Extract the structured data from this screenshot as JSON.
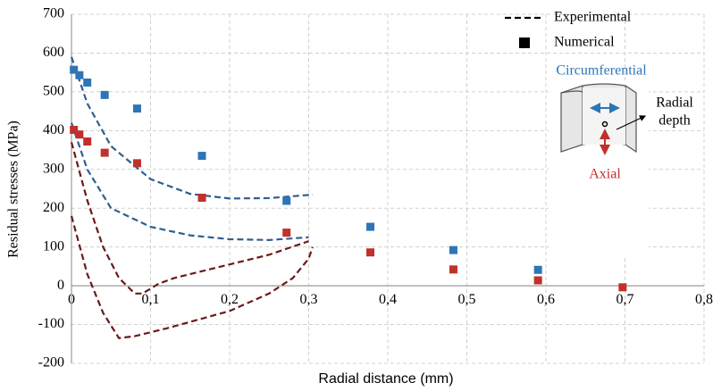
{
  "chart_data": {
    "type": "scatter",
    "xlabel": "Radial distance (mm)",
    "ylabel": "Residual stresses (MPa)",
    "xlim": [
      0,
      0.8
    ],
    "ylim": [
      -200,
      700
    ],
    "xticks": [
      0,
      {
        "value": 0.1,
        "label": "0,1"
      },
      {
        "value": 0.2,
        "label": "0,2"
      },
      {
        "value": 0.3,
        "label": "0,3"
      },
      {
        "value": 0.4,
        "label": "0,4"
      },
      {
        "value": 0.5,
        "label": "0,5"
      },
      {
        "value": 0.6,
        "label": "0,6"
      },
      {
        "value": 0.7,
        "label": "0,7"
      },
      {
        "value": 0.8,
        "label": "0,8"
      }
    ],
    "yticks": [
      -200,
      -100,
      0,
      100,
      200,
      300,
      400,
      500,
      600,
      700
    ],
    "grid": true,
    "legend": [
      {
        "label": "Experimental",
        "style": "dashed",
        "color": "#000000"
      },
      {
        "label": "Numerical",
        "marker": "square",
        "color": "#000000"
      }
    ],
    "annotations": [
      "Circumferential",
      "Radial",
      "depth",
      "Axial"
    ],
    "series": [
      {
        "color": "#2f5f8f",
        "style": "dashed",
        "x": [
          0,
          0.02,
          0.05,
          0.1,
          0.15,
          0.2,
          0.25,
          0.305
        ],
        "values": [
          590,
          470,
          360,
          275,
          237,
          225,
          226,
          235
        ]
      },
      {
        "color": "#2f5f8f",
        "style": "dashed",
        "x": [
          0,
          0.02,
          0.05,
          0.1,
          0.15,
          0.2,
          0.25,
          0.3
        ],
        "values": [
          420,
          300,
          200,
          152,
          130,
          120,
          118,
          125
        ]
      },
      {
        "color": "#6b1a1a",
        "style": "dashed",
        "x": [
          0,
          0.02,
          0.04,
          0.06,
          0.08,
          0.09,
          0.11,
          0.13,
          0.2,
          0.25,
          0.3
        ],
        "values": [
          370,
          220,
          100,
          20,
          -20,
          -20,
          5,
          20,
          55,
          80,
          115
        ]
      },
      {
        "color": "#6b1a1a",
        "style": "dashed",
        "x": [
          0,
          0.02,
          0.04,
          0.06,
          0.08,
          0.12,
          0.2,
          0.25,
          0.28,
          0.3,
          0.305
        ],
        "values": [
          180,
          30,
          -70,
          -135,
          -130,
          -110,
          -65,
          -20,
          20,
          70,
          100
        ]
      },
      {
        "color": "#2e75b6",
        "marker": "square",
        "x": [
          0.003,
          0.01,
          0.02,
          0.042,
          0.083,
          0.165,
          0.272,
          0.378,
          0.483,
          0.59
        ],
        "values": [
          557,
          543,
          524,
          492,
          457,
          335,
          219,
          152,
          92,
          41
        ]
      },
      {
        "color": "#c0302c",
        "marker": "square",
        "x": [
          0.003,
          0.01,
          0.02,
          0.042,
          0.083,
          0.165,
          0.272,
          0.378,
          0.483,
          0.59,
          0.697
        ],
        "values": [
          402,
          390,
          372,
          343,
          316,
          227,
          137,
          86,
          42,
          14,
          -4
        ]
      }
    ]
  }
}
